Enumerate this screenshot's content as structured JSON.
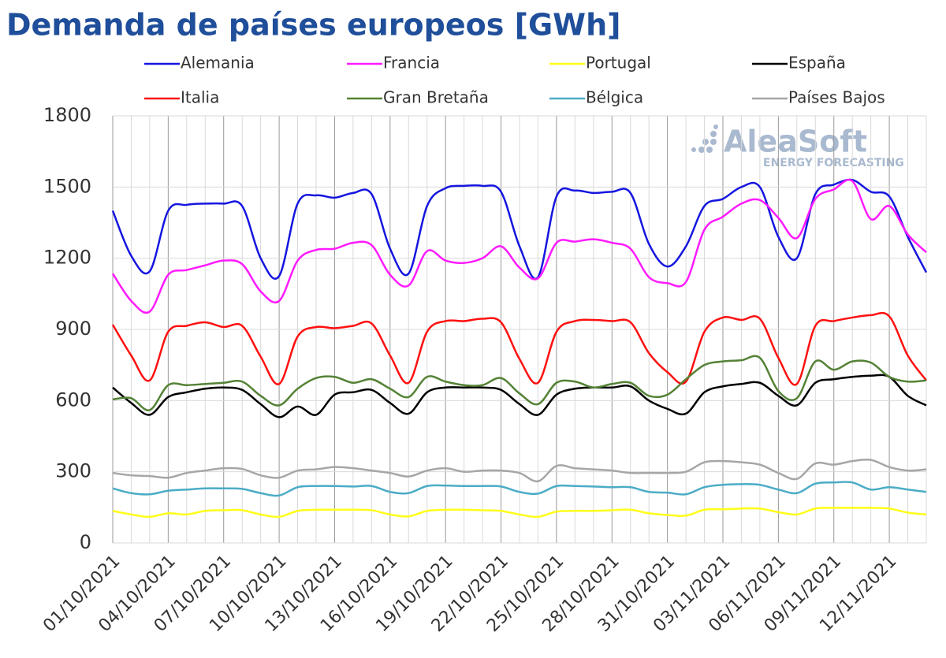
{
  "chart_data": {
    "type": "line",
    "title": "Demanda de países europeos [GWh]",
    "watermark": {
      "brand": "AleaSoft",
      "tagline": "ENERGY FORECASTING"
    },
    "categories": [
      "01/10/2021",
      null,
      null,
      "04/10/2021",
      null,
      null,
      "07/10/2021",
      null,
      null,
      "10/10/2021",
      null,
      null,
      "13/10/2021",
      null,
      null,
      "16/10/2021",
      null,
      null,
      "19/10/2021",
      null,
      null,
      "22/10/2021",
      null,
      null,
      "25/10/2021",
      null,
      null,
      "28/10/2021",
      null,
      null,
      "31/10/2021",
      null,
      null,
      "03/11/2021",
      null,
      null,
      "06/11/2021",
      null,
      null,
      "09/11/2021",
      null,
      null,
      "12/11/2021",
      null,
      null
    ],
    "ylim": [
      0,
      1800
    ],
    "yticks": [
      0,
      300,
      600,
      900,
      1200,
      1500,
      1800
    ],
    "grid": true,
    "series": [
      {
        "name": "Alemania",
        "color": "#1515e0",
        "values": [
          1400,
          1210,
          1145,
          1400,
          1425,
          1430,
          1430,
          1420,
          1200,
          1125,
          1430,
          1465,
          1455,
          1475,
          1470,
          1240,
          1135,
          1420,
          1495,
          1505,
          1505,
          1480,
          1250,
          1120,
          1460,
          1485,
          1475,
          1480,
          1475,
          1260,
          1165,
          1250,
          1420,
          1450,
          1500,
          1500,
          1290,
          1200,
          1470,
          1510,
          1530,
          1480,
          1460,
          1290,
          1140
        ]
      },
      {
        "name": "Francia",
        "color": "#ff1aff",
        "values": [
          1135,
          1020,
          975,
          1130,
          1150,
          1170,
          1190,
          1175,
          1060,
          1020,
          1190,
          1235,
          1240,
          1265,
          1255,
          1130,
          1085,
          1230,
          1190,
          1180,
          1200,
          1250,
          1160,
          1115,
          1265,
          1270,
          1280,
          1265,
          1240,
          1120,
          1095,
          1100,
          1320,
          1375,
          1430,
          1445,
          1370,
          1285,
          1450,
          1490,
          1525,
          1365,
          1420,
          1300,
          1225
        ]
      },
      {
        "name": "Portugal",
        "color": "#ffff1a",
        "values": [
          135,
          120,
          110,
          125,
          120,
          135,
          138,
          138,
          120,
          110,
          135,
          140,
          140,
          140,
          138,
          120,
          112,
          135,
          140,
          140,
          138,
          135,
          120,
          110,
          132,
          135,
          135,
          138,
          140,
          125,
          118,
          115,
          140,
          142,
          145,
          145,
          130,
          120,
          145,
          148,
          148,
          148,
          145,
          128,
          120
        ]
      },
      {
        "name": "España",
        "color": "#000000",
        "values": [
          655,
          590,
          540,
          615,
          635,
          650,
          655,
          645,
          585,
          530,
          575,
          540,
          625,
          635,
          645,
          590,
          545,
          635,
          655,
          655,
          655,
          645,
          585,
          540,
          625,
          650,
          655,
          655,
          660,
          600,
          565,
          545,
          635,
          660,
          670,
          675,
          620,
          580,
          675,
          690,
          700,
          705,
          700,
          620,
          580
        ]
      },
      {
        "name": "Italia",
        "color": "#ff1010",
        "values": [
          920,
          790,
          685,
          890,
          915,
          930,
          910,
          915,
          785,
          670,
          870,
          910,
          905,
          915,
          925,
          790,
          675,
          890,
          935,
          935,
          945,
          930,
          775,
          675,
          890,
          935,
          940,
          935,
          930,
          800,
          720,
          680,
          890,
          950,
          940,
          945,
          780,
          670,
          915,
          935,
          950,
          960,
          955,
          790,
          685
        ]
      },
      {
        "name": "Gran Bretaña",
        "color": "#548235",
        "values": [
          605,
          610,
          560,
          665,
          665,
          670,
          675,
          680,
          620,
          580,
          650,
          695,
          700,
          675,
          690,
          650,
          615,
          700,
          680,
          665,
          665,
          695,
          630,
          585,
          675,
          680,
          655,
          670,
          675,
          620,
          625,
          690,
          750,
          765,
          770,
          780,
          640,
          610,
          765,
          730,
          765,
          760,
          700,
          680,
          685
        ]
      },
      {
        "name": "Bélgica",
        "color": "#4bacc6",
        "values": [
          230,
          210,
          205,
          220,
          225,
          230,
          230,
          228,
          210,
          200,
          235,
          240,
          240,
          238,
          240,
          215,
          210,
          240,
          242,
          240,
          240,
          238,
          215,
          208,
          240,
          240,
          238,
          235,
          235,
          215,
          212,
          205,
          235,
          245,
          248,
          245,
          225,
          210,
          250,
          255,
          255,
          225,
          235,
          225,
          215
        ]
      },
      {
        "name": "Países Bajos",
        "color": "#a6a6a6",
        "values": [
          295,
          285,
          282,
          275,
          295,
          305,
          315,
          312,
          285,
          275,
          305,
          310,
          320,
          315,
          305,
          295,
          280,
          305,
          315,
          300,
          305,
          305,
          295,
          260,
          325,
          315,
          310,
          305,
          295,
          295,
          295,
          300,
          340,
          345,
          340,
          330,
          295,
          270,
          335,
          330,
          345,
          350,
          320,
          305,
          310
        ]
      }
    ]
  }
}
